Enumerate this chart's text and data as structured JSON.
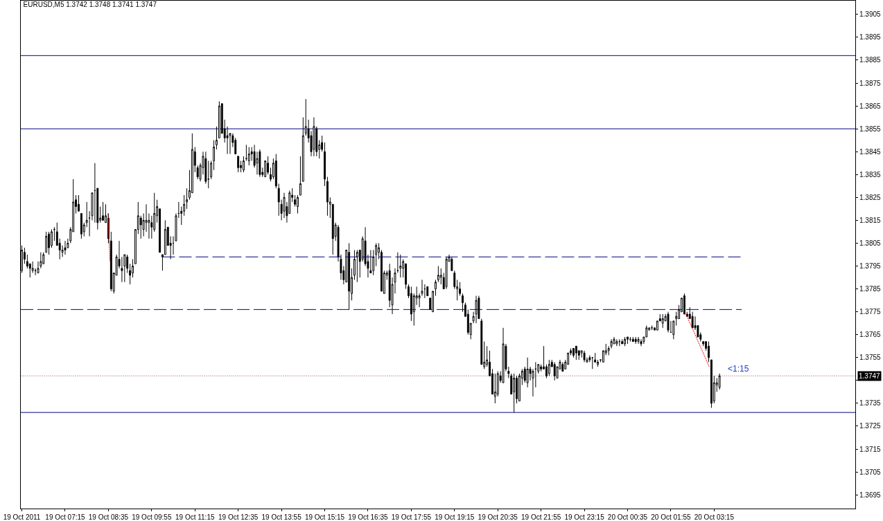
{
  "chart_data": {
    "type": "candlestick",
    "title": "EURUSD,M5 1.3742 1.3748 1.3741 1.3747",
    "x": [
      "2011-10-19T05:55",
      "2011-10-19T06:00",
      "2011-10-19T06:05",
      "2011-10-19T06:10",
      "2011-10-19T06:15",
      "2011-10-19T06:20",
      "2011-10-19T06:25",
      "2011-10-19T06:30",
      "2011-10-19T06:35",
      "2011-10-19T06:40",
      "2011-10-19T06:45",
      "2011-10-19T06:50",
      "2011-10-19T06:55",
      "2011-10-19T07:00",
      "2011-10-19T07:05",
      "2011-10-19T07:10",
      "2011-10-19T07:15",
      "2011-10-19T07:20",
      "2011-10-19T07:25",
      "2011-10-19T07:30",
      "2011-10-19T07:35",
      "2011-10-19T07:40",
      "2011-10-19T07:45",
      "2011-10-19T07:50",
      "2011-10-19T07:55",
      "2011-10-19T08:00",
      "2011-10-19T08:05",
      "2011-10-19T08:10",
      "2011-10-19T08:15",
      "2011-10-19T08:20",
      "2011-10-19T08:25",
      "2011-10-19T08:30",
      "2011-10-19T08:35",
      "2011-10-19T08:40",
      "2011-10-19T08:45",
      "2011-10-19T08:50",
      "2011-10-19T08:55",
      "2011-10-19T09:00",
      "2011-10-19T09:05",
      "2011-10-19T09:10",
      "2011-10-19T09:15",
      "2011-10-19T09:20",
      "2011-10-19T09:25",
      "2011-10-19T09:30",
      "2011-10-19T09:35",
      "2011-10-19T09:40",
      "2011-10-19T09:45",
      "2011-10-19T09:50",
      "2011-10-19T09:55",
      "2011-10-19T10:00",
      "2011-10-19T10:05",
      "2011-10-19T10:10",
      "2011-10-19T10:15",
      "2011-10-19T10:20",
      "2011-10-19T10:25",
      "2011-10-19T10:30",
      "2011-10-19T10:35",
      "2011-10-19T10:40",
      "2011-10-19T10:45",
      "2011-10-19T10:50",
      "2011-10-19T10:55",
      "2011-10-19T11:00",
      "2011-10-19T11:05",
      "2011-10-19T11:10",
      "2011-10-19T11:15",
      "2011-10-19T11:20",
      "2011-10-19T11:25",
      "2011-10-19T11:30",
      "2011-10-19T11:35",
      "2011-10-19T11:40",
      "2011-10-19T11:45",
      "2011-10-19T11:50",
      "2011-10-19T11:55",
      "2011-10-19T12:00",
      "2011-10-19T12:05",
      "2011-10-19T12:10",
      "2011-10-19T12:15",
      "2011-10-19T12:20",
      "2011-10-19T12:25",
      "2011-10-19T12:30",
      "2011-10-19T12:35",
      "2011-10-19T12:40",
      "2011-10-19T12:45",
      "2011-10-19T12:50",
      "2011-10-19T12:55",
      "2011-10-19T13:00",
      "2011-10-19T13:05",
      "2011-10-19T13:10",
      "2011-10-19T13:15",
      "2011-10-19T13:20",
      "2011-10-19T13:25",
      "2011-10-19T13:30",
      "2011-10-19T13:35",
      "2011-10-19T13:40",
      "2011-10-19T13:45",
      "2011-10-19T13:50",
      "2011-10-19T13:55",
      "2011-10-19T14:00",
      "2011-10-19T14:05",
      "2011-10-19T14:10",
      "2011-10-19T14:15",
      "2011-10-19T14:20",
      "2011-10-19T14:25",
      "2011-10-19T14:30",
      "2011-10-19T14:35",
      "2011-10-19T14:40",
      "2011-10-19T14:45",
      "2011-10-19T14:50",
      "2011-10-19T14:55",
      "2011-10-19T15:00",
      "2011-10-19T15:05",
      "2011-10-19T15:10",
      "2011-10-19T15:15",
      "2011-10-19T15:20",
      "2011-10-19T15:25",
      "2011-10-19T15:30",
      "2011-10-19T15:35",
      "2011-10-19T15:40",
      "2011-10-19T15:45",
      "2011-10-19T15:50",
      "2011-10-19T15:55",
      "2011-10-19T16:00",
      "2011-10-19T16:05",
      "2011-10-19T16:10",
      "2011-10-19T16:15",
      "2011-10-19T16:20",
      "2011-10-19T16:25",
      "2011-10-19T16:30",
      "2011-10-19T16:35",
      "2011-10-19T16:40",
      "2011-10-19T16:45",
      "2011-10-19T16:50",
      "2011-10-19T16:55",
      "2011-10-19T17:00",
      "2011-10-19T17:05",
      "2011-10-19T17:10",
      "2011-10-19T17:15",
      "2011-10-19T17:20",
      "2011-10-19T17:25",
      "2011-10-19T17:30",
      "2011-10-19T17:35",
      "2011-10-19T17:40",
      "2011-10-19T17:45",
      "2011-10-19T17:50",
      "2011-10-19T17:55",
      "2011-10-19T18:00",
      "2011-10-19T18:05",
      "2011-10-19T18:10",
      "2011-10-19T18:15",
      "2011-10-19T18:20",
      "2011-10-19T18:25",
      "2011-10-19T18:30",
      "2011-10-19T18:35",
      "2011-10-19T18:40",
      "2011-10-19T18:45",
      "2011-10-19T18:50",
      "2011-10-19T18:55",
      "2011-10-19T19:00",
      "2011-10-19T19:05",
      "2011-10-19T19:10",
      "2011-10-19T19:15",
      "2011-10-19T19:20",
      "2011-10-19T19:25",
      "2011-10-19T19:30",
      "2011-10-19T19:35",
      "2011-10-19T19:40",
      "2011-10-19T19:45",
      "2011-10-19T19:50",
      "2011-10-19T19:55",
      "2011-10-19T20:00",
      "2011-10-19T20:05",
      "2011-10-19T20:10",
      "2011-10-19T20:15",
      "2011-10-19T20:20",
      "2011-10-19T20:25",
      "2011-10-19T20:30",
      "2011-10-19T20:35",
      "2011-10-19T20:40",
      "2011-10-19T20:45",
      "2011-10-19T20:50",
      "2011-10-19T20:55",
      "2011-10-19T21:00",
      "2011-10-19T21:05",
      "2011-10-19T21:10",
      "2011-10-19T21:15",
      "2011-10-19T21:20",
      "2011-10-19T21:25",
      "2011-10-19T21:30",
      "2011-10-19T21:35",
      "2011-10-19T21:40",
      "2011-10-19T21:45",
      "2011-10-19T21:50",
      "2011-10-19T21:55",
      "2011-10-19T22:00",
      "2011-10-19T22:05",
      "2011-10-19T22:10",
      "2011-10-19T22:15",
      "2011-10-19T22:20",
      "2011-10-19T22:25",
      "2011-10-19T22:30",
      "2011-10-19T22:35",
      "2011-10-19T22:40",
      "2011-10-19T22:45",
      "2011-10-19T22:50",
      "2011-10-19T22:55",
      "2011-10-19T23:00",
      "2011-10-19T23:05",
      "2011-10-19T23:10",
      "2011-10-19T23:15",
      "2011-10-19T23:20",
      "2011-10-19T23:25",
      "2011-10-19T23:30",
      "2011-10-19T23:35",
      "2011-10-19T23:40",
      "2011-10-19T23:45",
      "2011-10-19T23:50",
      "2011-10-19T23:55",
      "2011-10-20T00:00",
      "2011-10-20T00:05",
      "2011-10-20T00:10",
      "2011-10-20T00:15",
      "2011-10-20T00:20",
      "2011-10-20T00:25",
      "2011-10-20T00:30",
      "2011-10-20T00:35",
      "2011-10-20T00:40",
      "2011-10-20T00:45",
      "2011-10-20T00:50",
      "2011-10-20T00:55",
      "2011-10-20T01:00",
      "2011-10-20T01:05",
      "2011-10-20T01:10",
      "2011-10-20T01:15",
      "2011-10-20T01:20",
      "2011-10-20T01:25",
      "2011-10-20T01:30",
      "2011-10-20T01:35",
      "2011-10-20T01:40",
      "2011-10-20T01:45",
      "2011-10-20T01:50",
      "2011-10-20T01:55",
      "2011-10-20T02:00",
      "2011-10-20T02:05",
      "2011-10-20T02:10",
      "2011-10-20T02:15",
      "2011-10-20T02:20",
      "2011-10-20T02:25",
      "2011-10-20T02:30",
      "2011-10-20T02:35",
      "2011-10-20T02:40",
      "2011-10-20T02:45",
      "2011-10-20T02:50",
      "2011-10-20T02:55",
      "2011-10-20T03:00",
      "2011-10-20T03:05",
      "2011-10-20T03:10",
      "2011-10-20T03:15",
      "2011-10-20T03:20",
      "2011-10-20T03:25"
    ],
    "ohlc": [
      [
        1.3793,
        1.3804,
        1.3792,
        1.3802
      ],
      [
        1.3801,
        1.3803,
        1.3796,
        1.3798
      ],
      [
        1.3797,
        1.38,
        1.3794,
        1.3795
      ],
      [
        1.3796,
        1.3796,
        1.379,
        1.3794
      ],
      [
        1.3793,
        1.3797,
        1.3792,
        1.3794
      ],
      [
        1.3793,
        1.3794,
        1.3791,
        1.3793
      ],
      [
        1.3792,
        1.3797,
        1.3792,
        1.3794
      ],
      [
        1.3795,
        1.3801,
        1.3794,
        1.3797
      ],
      [
        1.3796,
        1.3801,
        1.3796,
        1.38
      ],
      [
        1.3801,
        1.381,
        1.3801,
        1.3808
      ],
      [
        1.3809,
        1.381,
        1.38,
        1.3803
      ],
      [
        1.3804,
        1.3811,
        1.3803,
        1.381
      ],
      [
        1.3811,
        1.3812,
        1.3806,
        1.3811
      ],
      [
        1.381,
        1.3814,
        1.3804,
        1.3804
      ],
      [
        1.3805,
        1.3807,
        1.3798,
        1.3802
      ],
      [
        1.3801,
        1.3804,
        1.3799,
        1.3802
      ],
      [
        1.3803,
        1.3806,
        1.38,
        1.3802
      ],
      [
        1.3803,
        1.3807,
        1.3803,
        1.3805
      ],
      [
        1.3806,
        1.3812,
        1.3805,
        1.3811
      ],
      [
        1.381,
        1.3833,
        1.381,
        1.3823
      ],
      [
        1.3824,
        1.3826,
        1.3818,
        1.3821
      ],
      [
        1.3822,
        1.3826,
        1.3819,
        1.3819
      ],
      [
        1.3818,
        1.3818,
        1.3807,
        1.3809
      ],
      [
        1.381,
        1.3814,
        1.3808,
        1.3813
      ],
      [
        1.3814,
        1.3823,
        1.3812,
        1.3815
      ],
      [
        1.3816,
        1.3819,
        1.3808,
        1.3816
      ],
      [
        1.3817,
        1.3827,
        1.3815,
        1.3827
      ],
      [
        1.3828,
        1.384,
        1.3814,
        1.3828
      ],
      [
        1.3829,
        1.3829,
        1.3811,
        1.3814
      ],
      [
        1.3815,
        1.3821,
        1.3814,
        1.3816
      ],
      [
        1.3817,
        1.3823,
        1.3815,
        1.3815
      ],
      [
        1.3814,
        1.3822,
        1.3814,
        1.3817
      ],
      [
        1.3816,
        1.3818,
        1.3805,
        1.3807
      ],
      [
        1.3806,
        1.381,
        1.3784,
        1.3785
      ],
      [
        1.3784,
        1.3792,
        1.3783,
        1.3792
      ],
      [
        1.3791,
        1.38,
        1.3791,
        1.3799
      ],
      [
        1.3798,
        1.3806,
        1.3794,
        1.3795
      ],
      [
        1.3794,
        1.3799,
        1.3788,
        1.3793
      ],
      [
        1.3795,
        1.38,
        1.3788,
        1.38
      ],
      [
        1.3799,
        1.38,
        1.3792,
        1.3794
      ],
      [
        1.3793,
        1.3796,
        1.3787,
        1.3791
      ],
      [
        1.3792,
        1.3798,
        1.379,
        1.3795
      ],
      [
        1.3796,
        1.3811,
        1.3796,
        1.3811
      ],
      [
        1.3811,
        1.3823,
        1.3809,
        1.3817
      ],
      [
        1.3816,
        1.3817,
        1.3807,
        1.3813
      ],
      [
        1.3811,
        1.3818,
        1.3808,
        1.3815
      ],
      [
        1.3814,
        1.3822,
        1.381,
        1.3815
      ],
      [
        1.3814,
        1.3818,
        1.3807,
        1.3815
      ],
      [
        1.3814,
        1.3817,
        1.3807,
        1.3812
      ],
      [
        1.3811,
        1.3827,
        1.381,
        1.3818
      ],
      [
        1.3817,
        1.3824,
        1.3814,
        1.3821
      ],
      [
        1.382,
        1.382,
        1.3801,
        1.3801
      ],
      [
        1.38,
        1.38,
        1.3793,
        1.3799
      ],
      [
        1.38,
        1.3815,
        1.38,
        1.3811
      ],
      [
        1.3812,
        1.3812,
        1.3804,
        1.3804
      ],
      [
        1.3805,
        1.3808,
        1.3798,
        1.3804
      ],
      [
        1.3805,
        1.3808,
        1.38,
        1.3805
      ],
      [
        1.3806,
        1.3818,
        1.3806,
        1.3817
      ],
      [
        1.3818,
        1.3823,
        1.3816,
        1.3818
      ],
      [
        1.3819,
        1.3821,
        1.3813,
        1.3818
      ],
      [
        1.3819,
        1.3826,
        1.3817,
        1.3822
      ],
      [
        1.3823,
        1.3829,
        1.382,
        1.3824
      ],
      [
        1.3825,
        1.3837,
        1.3824,
        1.3828
      ],
      [
        1.3827,
        1.3853,
        1.3827,
        1.3846
      ],
      [
        1.3845,
        1.3847,
        1.3836,
        1.3839
      ],
      [
        1.3838,
        1.3839,
        1.3833,
        1.3834
      ],
      [
        1.3833,
        1.384,
        1.3832,
        1.3839
      ],
      [
        1.3838,
        1.3845,
        1.3835,
        1.3843
      ],
      [
        1.3842,
        1.3845,
        1.3831,
        1.3832
      ],
      [
        1.3833,
        1.3841,
        1.3829,
        1.3833
      ],
      [
        1.3834,
        1.3841,
        1.3833,
        1.384
      ],
      [
        1.3841,
        1.385,
        1.3837,
        1.3847
      ],
      [
        1.3848,
        1.3856,
        1.3846,
        1.385
      ],
      [
        1.3851,
        1.3867,
        1.3851,
        1.3865
      ],
      [
        1.3866,
        1.3866,
        1.3853,
        1.3853
      ],
      [
        1.3855,
        1.3859,
        1.3849,
        1.3851
      ],
      [
        1.3852,
        1.3856,
        1.3844,
        1.3851
      ],
      [
        1.3852,
        1.3853,
        1.3844,
        1.3853
      ],
      [
        1.3852,
        1.3853,
        1.3847,
        1.3849
      ],
      [
        1.385,
        1.3851,
        1.3844,
        1.3844
      ],
      [
        1.3843,
        1.3843,
        1.3836,
        1.3838
      ],
      [
        1.3839,
        1.3841,
        1.3836,
        1.3838
      ],
      [
        1.3837,
        1.3843,
        1.3836,
        1.3841
      ],
      [
        1.3842,
        1.3848,
        1.3841,
        1.3842
      ],
      [
        1.3841,
        1.3847,
        1.3839,
        1.3844
      ],
      [
        1.3845,
        1.3847,
        1.3841,
        1.3844
      ],
      [
        1.3845,
        1.3848,
        1.3838,
        1.3839
      ],
      [
        1.384,
        1.3845,
        1.3835,
        1.3842
      ],
      [
        1.3845,
        1.3846,
        1.3834,
        1.3835
      ],
      [
        1.3836,
        1.3838,
        1.3834,
        1.3835
      ],
      [
        1.3834,
        1.3841,
        1.3834,
        1.3841
      ],
      [
        1.384,
        1.3843,
        1.3835,
        1.3836
      ],
      [
        1.3835,
        1.3838,
        1.3832,
        1.3833
      ],
      [
        1.3834,
        1.3842,
        1.3833,
        1.384
      ],
      [
        1.3841,
        1.3844,
        1.3829,
        1.383
      ],
      [
        1.3829,
        1.3831,
        1.3817,
        1.3823
      ],
      [
        1.3822,
        1.3824,
        1.3815,
        1.3818
      ],
      [
        1.3819,
        1.3827,
        1.3816,
        1.3825
      ],
      [
        1.3821,
        1.3823,
        1.3814,
        1.3817
      ],
      [
        1.3818,
        1.3828,
        1.3818,
        1.3827
      ],
      [
        1.3826,
        1.3829,
        1.3823,
        1.3825
      ],
      [
        1.3824,
        1.3826,
        1.3821,
        1.3822
      ],
      [
        1.3821,
        1.3826,
        1.3818,
        1.3825
      ],
      [
        1.3826,
        1.3843,
        1.3826,
        1.3831
      ],
      [
        1.3832,
        1.386,
        1.3832,
        1.3852
      ],
      [
        1.3853,
        1.3868,
        1.3852,
        1.3856
      ],
      [
        1.3855,
        1.3859,
        1.3849,
        1.3851
      ],
      [
        1.3852,
        1.3854,
        1.3843,
        1.3845
      ],
      [
        1.3846,
        1.386,
        1.3843,
        1.3856
      ],
      [
        1.3855,
        1.3856,
        1.3843,
        1.3845
      ],
      [
        1.3846,
        1.385,
        1.3842,
        1.3848
      ],
      [
        1.3849,
        1.3852,
        1.3845,
        1.3846
      ],
      [
        1.3845,
        1.3849,
        1.383,
        1.3833
      ],
      [
        1.3832,
        1.3834,
        1.3817,
        1.3823
      ],
      [
        1.3822,
        1.3825,
        1.3816,
        1.3823
      ],
      [
        1.3822,
        1.3822,
        1.38,
        1.3807
      ],
      [
        1.3808,
        1.3814,
        1.3806,
        1.3813
      ],
      [
        1.3812,
        1.3813,
        1.3797,
        1.3799
      ],
      [
        1.3798,
        1.38,
        1.3789,
        1.3792
      ],
      [
        1.3793,
        1.3795,
        1.3787,
        1.3789
      ],
      [
        1.3788,
        1.3802,
        1.3788,
        1.3802
      ],
      [
        1.3801,
        1.3805,
        1.3776,
        1.3784
      ],
      [
        1.3783,
        1.3794,
        1.378,
        1.379
      ],
      [
        1.3791,
        1.3802,
        1.3789,
        1.3798
      ],
      [
        1.3799,
        1.3802,
        1.3788,
        1.3801
      ],
      [
        1.3802,
        1.3802,
        1.379,
        1.3797
      ],
      [
        1.3798,
        1.3808,
        1.3797,
        1.3807
      ],
      [
        1.3806,
        1.3812,
        1.3795,
        1.3796
      ],
      [
        1.3797,
        1.38,
        1.379,
        1.3794
      ],
      [
        1.3793,
        1.3802,
        1.3792,
        1.3792
      ],
      [
        1.3793,
        1.3802,
        1.3791,
        1.3799
      ],
      [
        1.38,
        1.3805,
        1.3795,
        1.3804
      ],
      [
        1.3801,
        1.3805,
        1.3798,
        1.3803
      ],
      [
        1.3801,
        1.3802,
        1.3784,
        1.3784
      ],
      [
        1.3783,
        1.3793,
        1.3783,
        1.3792
      ],
      [
        1.3791,
        1.3793,
        1.3789,
        1.3792
      ],
      [
        1.3793,
        1.3796,
        1.3777,
        1.378
      ],
      [
        1.3778,
        1.379,
        1.3774,
        1.3787
      ],
      [
        1.3788,
        1.3794,
        1.3783,
        1.3792
      ],
      [
        1.3793,
        1.3801,
        1.3792,
        1.3793
      ],
      [
        1.3794,
        1.38,
        1.379,
        1.3795
      ],
      [
        1.3794,
        1.3798,
        1.379,
        1.3797
      ],
      [
        1.3796,
        1.3796,
        1.3785,
        1.3787
      ],
      [
        1.3786,
        1.3787,
        1.3781,
        1.3782
      ],
      [
        1.3783,
        1.3786,
        1.3771,
        1.3774
      ],
      [
        1.3775,
        1.3783,
        1.3769,
        1.3782
      ],
      [
        1.3781,
        1.3786,
        1.3778,
        1.3782
      ],
      [
        1.3781,
        1.3783,
        1.3777,
        1.3782
      ],
      [
        1.3783,
        1.3789,
        1.3782,
        1.3784
      ],
      [
        1.3785,
        1.3787,
        1.3781,
        1.3785
      ],
      [
        1.3786,
        1.3786,
        1.3782,
        1.3782
      ],
      [
        1.3781,
        1.3781,
        1.3776,
        1.3776
      ],
      [
        1.3775,
        1.3784,
        1.3775,
        1.3784
      ],
      [
        1.3785,
        1.3789,
        1.3782,
        1.3788
      ],
      [
        1.3789,
        1.3795,
        1.3788,
        1.3791
      ],
      [
        1.379,
        1.3794,
        1.3787,
        1.3791
      ],
      [
        1.379,
        1.3792,
        1.3785,
        1.3785
      ],
      [
        1.3786,
        1.3799,
        1.3785,
        1.3798
      ],
      [
        1.3797,
        1.38,
        1.3797,
        1.3799
      ],
      [
        1.3798,
        1.3799,
        1.3793,
        1.3793
      ],
      [
        1.3792,
        1.3793,
        1.3785,
        1.3786
      ],
      [
        1.3785,
        1.3789,
        1.378,
        1.3786
      ],
      [
        1.3785,
        1.3788,
        1.3782,
        1.3783
      ],
      [
        1.3782,
        1.3783,
        1.3775,
        1.3779
      ],
      [
        1.3778,
        1.3779,
        1.3773,
        1.3773
      ],
      [
        1.3774,
        1.3776,
        1.3765,
        1.3766
      ],
      [
        1.3765,
        1.377,
        1.3763,
        1.377
      ],
      [
        1.3771,
        1.3775,
        1.377,
        1.3773
      ],
      [
        1.3774,
        1.3782,
        1.377,
        1.378
      ],
      [
        1.3781,
        1.3782,
        1.3772,
        1.3772
      ],
      [
        1.3771,
        1.3772,
        1.3752,
        1.3752
      ],
      [
        1.3751,
        1.3762,
        1.375,
        1.3753
      ],
      [
        1.3752,
        1.376,
        1.3751,
        1.3754
      ],
      [
        1.3753,
        1.3758,
        1.3747,
        1.3747
      ],
      [
        1.3748,
        1.375,
        1.3739,
        1.3739
      ],
      [
        1.3738,
        1.3748,
        1.3735,
        1.374
      ],
      [
        1.3739,
        1.3749,
        1.3738,
        1.3748
      ],
      [
        1.3747,
        1.3749,
        1.3744,
        1.3745
      ],
      [
        1.3744,
        1.3768,
        1.3744,
        1.3761
      ],
      [
        1.376,
        1.3761,
        1.3749,
        1.375
      ],
      [
        1.3749,
        1.3751,
        1.3746,
        1.3748
      ],
      [
        1.3747,
        1.3748,
        1.3739,
        1.3739
      ],
      [
        1.374,
        1.3748,
        1.3731,
        1.3746
      ],
      [
        1.3746,
        1.3747,
        1.3735,
        1.3737
      ],
      [
        1.3736,
        1.3748,
        1.3736,
        1.3747
      ],
      [
        1.3746,
        1.375,
        1.3743,
        1.3749
      ],
      [
        1.375,
        1.3751,
        1.3744,
        1.3745
      ],
      [
        1.3744,
        1.3755,
        1.3742,
        1.375
      ],
      [
        1.375,
        1.3751,
        1.3745,
        1.3748
      ],
      [
        1.3746,
        1.375,
        1.3738,
        1.3749
      ],
      [
        1.375,
        1.3753,
        1.3742,
        1.375
      ],
      [
        1.3749,
        1.3752,
        1.3748,
        1.3752
      ],
      [
        1.3751,
        1.3752,
        1.3749,
        1.375
      ],
      [
        1.3751,
        1.376,
        1.375,
        1.375
      ],
      [
        1.3751,
        1.3752,
        1.3746,
        1.3747
      ],
      [
        1.3748,
        1.3754,
        1.3747,
        1.3752
      ],
      [
        1.3753,
        1.3754,
        1.3751,
        1.3751
      ],
      [
        1.3752,
        1.3753,
        1.3745,
        1.3747
      ],
      [
        1.3746,
        1.3751,
        1.3746,
        1.3751
      ],
      [
        1.375,
        1.3754,
        1.375,
        1.3753
      ],
      [
        1.3752,
        1.3753,
        1.3749,
        1.3749
      ],
      [
        1.375,
        1.3754,
        1.375,
        1.3753
      ],
      [
        1.3752,
        1.3757,
        1.3752,
        1.3757
      ],
      [
        1.3758,
        1.3759,
        1.3756,
        1.3757
      ],
      [
        1.3759,
        1.3759,
        1.3755,
        1.3756
      ],
      [
        1.376,
        1.376,
        1.3754,
        1.3757
      ],
      [
        1.3758,
        1.3758,
        1.3754,
        1.3756
      ],
      [
        1.3757,
        1.3758,
        1.3755,
        1.3758
      ],
      [
        1.3757,
        1.3758,
        1.3753,
        1.3754
      ],
      [
        1.3753,
        1.3755,
        1.3753,
        1.3754
      ],
      [
        1.3755,
        1.3756,
        1.3753,
        1.3754
      ],
      [
        1.3755,
        1.3755,
        1.375,
        1.3755
      ],
      [
        1.3754,
        1.3757,
        1.3753,
        1.3753
      ],
      [
        1.3752,
        1.3754,
        1.3751,
        1.3753
      ],
      [
        1.3754,
        1.3754,
        1.3753,
        1.3754
      ],
      [
        1.3753,
        1.3758,
        1.3753,
        1.3758
      ],
      [
        1.3757,
        1.3761,
        1.3756,
        1.3758
      ],
      [
        1.3758,
        1.376,
        1.3756,
        1.3759
      ],
      [
        1.376,
        1.3763,
        1.3759,
        1.3762
      ],
      [
        1.3761,
        1.3764,
        1.3761,
        1.3763
      ],
      [
        1.3761,
        1.3763,
        1.376,
        1.3762
      ],
      [
        1.3762,
        1.3763,
        1.376,
        1.3762
      ],
      [
        1.3762,
        1.3763,
        1.3761,
        1.3761
      ],
      [
        1.3761,
        1.3764,
        1.376,
        1.3763
      ],
      [
        1.3764,
        1.3764,
        1.3761,
        1.3763
      ],
      [
        1.3763,
        1.3764,
        1.3762,
        1.3763
      ],
      [
        1.3763,
        1.3764,
        1.3762,
        1.3762
      ],
      [
        1.3763,
        1.3764,
        1.3761,
        1.3762
      ],
      [
        1.3762,
        1.3764,
        1.3761,
        1.3763
      ],
      [
        1.3762,
        1.3763,
        1.376,
        1.3761
      ],
      [
        1.3762,
        1.3764,
        1.3761,
        1.3764
      ],
      [
        1.3764,
        1.3769,
        1.3764,
        1.3768
      ],
      [
        1.3767,
        1.3768,
        1.3767,
        1.3768
      ],
      [
        1.3768,
        1.3769,
        1.3767,
        1.3768
      ],
      [
        1.3768,
        1.3768,
        1.3767,
        1.3767
      ],
      [
        1.3767,
        1.3771,
        1.3767,
        1.3771
      ],
      [
        1.3772,
        1.3774,
        1.3771,
        1.3771
      ],
      [
        1.377,
        1.3774,
        1.3768,
        1.3772
      ],
      [
        1.3771,
        1.3774,
        1.3771,
        1.3773
      ],
      [
        1.3774,
        1.3775,
        1.3766,
        1.3767
      ],
      [
        1.3766,
        1.3771,
        1.3766,
        1.3766
      ],
      [
        1.3765,
        1.3771,
        1.3763,
        1.3771
      ],
      [
        1.3772,
        1.3775,
        1.3769,
        1.3773
      ],
      [
        1.3772,
        1.3778,
        1.3772,
        1.3776
      ],
      [
        1.3775,
        1.3781,
        1.3775,
        1.3781
      ],
      [
        1.3782,
        1.3783,
        1.3774,
        1.3774
      ],
      [
        1.3774,
        1.3775,
        1.3773,
        1.3773
      ],
      [
        1.3774,
        1.3777,
        1.3772,
        1.3772
      ],
      [
        1.3773,
        1.3775,
        1.3768,
        1.3768
      ],
      [
        1.3769,
        1.3773,
        1.3767,
        1.3768
      ],
      [
        1.3769,
        1.3769,
        1.3764,
        1.3764
      ],
      [
        1.3765,
        1.3766,
        1.3762,
        1.3763
      ],
      [
        1.3762,
        1.3762,
        1.376,
        1.3761
      ],
      [
        1.3762,
        1.3762,
        1.3758,
        1.3759
      ],
      [
        1.376,
        1.3762,
        1.3753,
        1.3755
      ],
      [
        1.3754,
        1.3754,
        1.3733,
        1.3735
      ],
      [
        1.3736,
        1.3747,
        1.3735,
        1.3744
      ],
      [
        1.3743,
        1.3746,
        1.374,
        1.3744
      ],
      [
        1.3742,
        1.3748,
        1.3741,
        1.3747
      ]
    ],
    "series": [
      {
        "type": "line",
        "color": "#000080",
        "line_style": "dashed",
        "x": [
          "2011-10-19T10:15",
          "2011-10-20T04:06"
        ],
        "values": [
          1.3799,
          1.3799
        ]
      },
      {
        "type": "line",
        "color": "#000080",
        "line_style": "dashed",
        "x": [
          "2011-10-19T05:53",
          "2011-10-20T04:06"
        ],
        "values": [
          1.3776,
          1.3776
        ]
      },
      {
        "type": "line",
        "color": "#ff0000",
        "line_style": "dotted",
        "x": [
          "2011-10-19T08:34",
          "2011-10-19T08:38"
        ],
        "values": [
          1.3818,
          1.3797
        ]
      },
      {
        "type": "line",
        "color": "#ff0000",
        "line_style": "dotted",
        "x": [
          "2011-10-20T02:23",
          "2011-10-20T03:06"
        ],
        "values": [
          1.3774,
          1.3751
        ]
      }
    ],
    "ref_lines": [
      {
        "axis": "y",
        "value": 1.3887,
        "color": "#0000b4"
      },
      {
        "axis": "y",
        "value": 1.3855,
        "color": "#000080"
      },
      {
        "axis": "y",
        "value": 1.3731,
        "color": "#000080"
      },
      {
        "axis": "y",
        "value": 1.3747,
        "label": "1.3747",
        "color": "#c8a0a8",
        "line_style": "dotted"
      }
    ],
    "annotations": [
      "<1:15"
    ],
    "xlim": [
      "2011-10-19T05:53",
      "2011-10-20T07:36"
    ],
    "xticks": [
      {
        "value": "2011-10-19T05:55",
        "label": "19 Oct 2011"
      },
      {
        "value": "2011-10-19T07:15",
        "label": "19 Oct 07:15"
      },
      {
        "value": "2011-10-19T08:35",
        "label": "19 Oct 08:35"
      },
      {
        "value": "2011-10-19T09:55",
        "label": "19 Oct 09:55"
      },
      {
        "value": "2011-10-19T11:15",
        "label": "19 Oct 11:15"
      },
      {
        "value": "2011-10-19T12:35",
        "label": "19 Oct 12:35"
      },
      {
        "value": "2011-10-19T13:55",
        "label": "19 Oct 13:55"
      },
      {
        "value": "2011-10-19T15:15",
        "label": "19 Oct 15:15"
      },
      {
        "value": "2011-10-19T16:35",
        "label": "19 Oct 16:35"
      },
      {
        "value": "2011-10-19T17:55",
        "label": "19 Oct 17:55"
      },
      {
        "value": "2011-10-19T19:15",
        "label": "19 Oct 19:15"
      },
      {
        "value": "2011-10-19T20:35",
        "label": "19 Oct 20:35"
      },
      {
        "value": "2011-10-19T21:55",
        "label": "19 Oct 21:55"
      },
      {
        "value": "2011-10-19T23:15",
        "label": "19 Oct 23:15"
      },
      {
        "value": "2011-10-20T00:35",
        "label": "20 Oct 00:35"
      },
      {
        "value": "2011-10-20T01:55",
        "label": "20 Oct 01:55"
      },
      {
        "value": "2011-10-20T03:15",
        "label": "20 Oct 03:15"
      }
    ],
    "ylim": [
      1.3689,
      1.3911
    ],
    "yticks": [
      1.3695,
      1.3705,
      1.3715,
      1.3725,
      1.3735,
      {
        "value": 1.3745,
        "label": null
      },
      1.3755,
      1.3765,
      1.3775,
      1.3785,
      1.3795,
      1.3805,
      1.3815,
      1.3825,
      1.3835,
      1.3845,
      1.3855,
      1.3865,
      1.3875,
      1.3885,
      1.3895,
      1.3905
    ],
    "grid": false
  }
}
